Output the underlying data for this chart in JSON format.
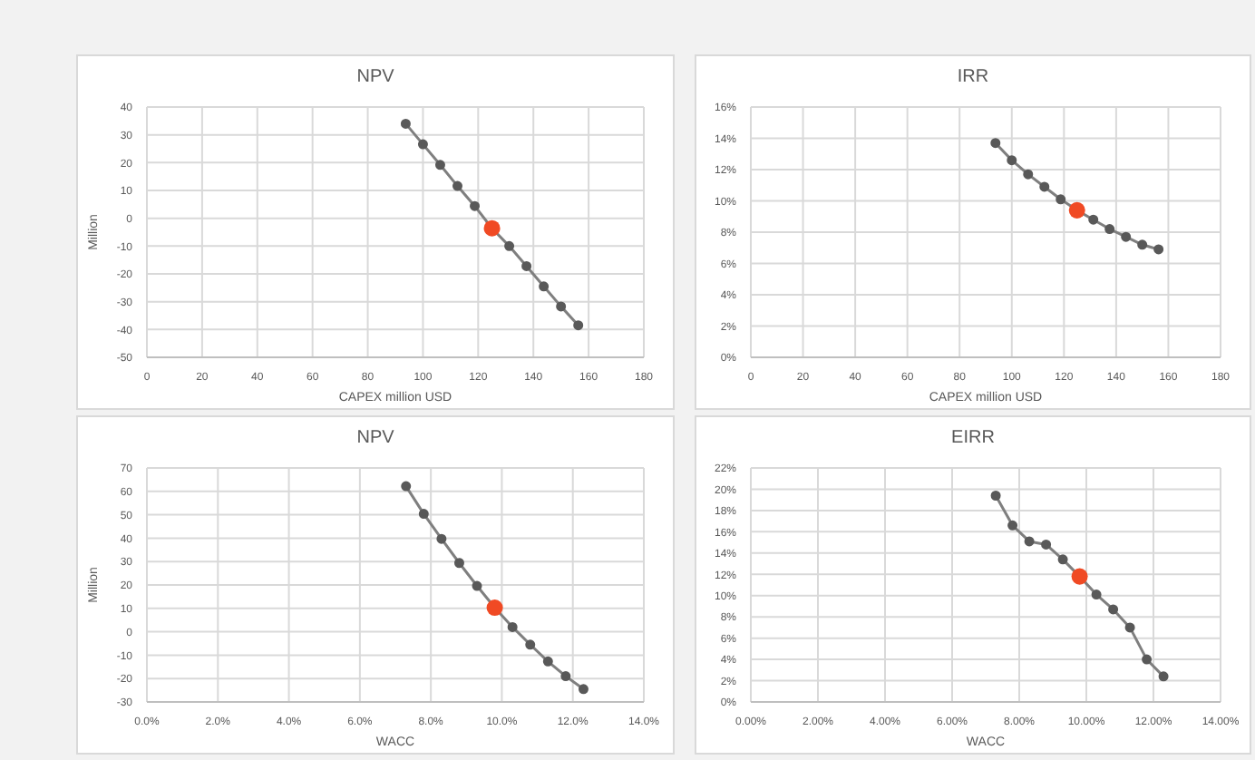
{
  "chart_data": [
    {
      "type": "line",
      "title": "NPV",
      "xlabel": "CAPEX million USD",
      "ylabel": "Million",
      "xlim": [
        0,
        180
      ],
      "xticks": [
        0,
        20,
        40,
        60,
        80,
        100,
        120,
        140,
        160,
        180
      ],
      "ylim": [
        -50,
        40
      ],
      "yticks": [
        -50,
        -40,
        -30,
        -20,
        -10,
        0,
        10,
        20,
        30,
        40
      ],
      "grid": true,
      "marker": "circle",
      "series": [
        {
          "type": "line",
          "color": "#7f7f7f",
          "x": [
            93.75,
            100,
            106.25,
            112.5,
            118.75,
            125,
            131.25,
            137.5,
            143.75,
            150,
            156.25
          ],
          "values": [
            34,
            26.6,
            19.2,
            11.6,
            4.4,
            -3.6,
            -10,
            -17.2,
            -24.5,
            -31.7,
            -38.5
          ]
        },
        {
          "type": "scatter",
          "color": "#f04a24",
          "x": [
            125
          ],
          "values": [
            -3.6
          ]
        }
      ]
    },
    {
      "type": "line",
      "title": "IRR",
      "xlabel": "CAPEX million USD",
      "xlim": [
        0,
        180
      ],
      "xticks": [
        0,
        20,
        40,
        60,
        80,
        100,
        120,
        140,
        160,
        180
      ],
      "ylim": [
        0,
        16
      ],
      "yticks": [
        {
          "value": 0,
          "label": "0%"
        },
        {
          "value": 2,
          "label": "2%"
        },
        {
          "value": 4,
          "label": "4%"
        },
        {
          "value": 6,
          "label": "6%"
        },
        {
          "value": 8,
          "label": "8%"
        },
        {
          "value": 10,
          "label": "10%"
        },
        {
          "value": 12,
          "label": "12%"
        },
        {
          "value": 14,
          "label": "14%"
        },
        {
          "value": 16,
          "label": "16%"
        }
      ],
      "grid": true,
      "marker": "circle",
      "series": [
        {
          "type": "line",
          "color": "#7f7f7f",
          "x": [
            93.75,
            100,
            106.25,
            112.5,
            118.75,
            125,
            131.25,
            137.5,
            143.75,
            150,
            156.25
          ],
          "values": [
            13.7,
            12.6,
            11.7,
            10.9,
            10.1,
            9.4,
            8.8,
            8.2,
            7.7,
            7.2,
            6.9
          ]
        },
        {
          "type": "scatter",
          "color": "#f04a24",
          "x": [
            125
          ],
          "values": [
            9.4
          ]
        }
      ]
    },
    {
      "type": "line",
      "title": "NPV",
      "xlabel": "WACC",
      "ylabel": "Million",
      "xlim": [
        0,
        14
      ],
      "xticks": [
        {
          "value": 0,
          "label": "0.0%"
        },
        {
          "value": 2,
          "label": "2.0%"
        },
        {
          "value": 4,
          "label": "4.0%"
        },
        {
          "value": 6,
          "label": "6.0%"
        },
        {
          "value": 8,
          "label": "8.0%"
        },
        {
          "value": 10,
          "label": "10.0%"
        },
        {
          "value": 12,
          "label": "12.0%"
        },
        {
          "value": 14,
          "label": "14.0%"
        }
      ],
      "ylim": [
        -30,
        70
      ],
      "yticks": [
        -30,
        -20,
        -10,
        0,
        10,
        20,
        30,
        40,
        50,
        60,
        70
      ],
      "grid": true,
      "marker": "circle",
      "series": [
        {
          "type": "line",
          "color": "#7f7f7f",
          "x": [
            7.3,
            7.8,
            8.3,
            8.8,
            9.3,
            9.8,
            10.3,
            10.8,
            11.3,
            11.8,
            12.3
          ],
          "values": [
            62.2,
            50.4,
            39.7,
            29.4,
            19.6,
            10.3,
            2,
            -5.5,
            -12.7,
            -19,
            -24.5
          ]
        },
        {
          "type": "scatter",
          "color": "#f04a24",
          "x": [
            9.8
          ],
          "values": [
            10.3
          ]
        }
      ]
    },
    {
      "type": "line",
      "title": "EIRR",
      "xlabel": "WACC",
      "xlim": [
        0,
        14
      ],
      "xticks": [
        {
          "value": 0,
          "label": "0.00%"
        },
        {
          "value": 2,
          "label": "2.00%"
        },
        {
          "value": 4,
          "label": "4.00%"
        },
        {
          "value": 6,
          "label": "6.00%"
        },
        {
          "value": 8,
          "label": "8.00%"
        },
        {
          "value": 10,
          "label": "10.00%"
        },
        {
          "value": 12,
          "label": "12.00%"
        },
        {
          "value": 14,
          "label": "14.00%"
        }
      ],
      "ylim": [
        0,
        22
      ],
      "yticks": [
        {
          "value": 0,
          "label": "0%"
        },
        {
          "value": 2,
          "label": "2%"
        },
        {
          "value": 4,
          "label": "4%"
        },
        {
          "value": 6,
          "label": "6%"
        },
        {
          "value": 8,
          "label": "8%"
        },
        {
          "value": 10,
          "label": "10%"
        },
        {
          "value": 12,
          "label": "12%"
        },
        {
          "value": 14,
          "label": "14%"
        },
        {
          "value": 16,
          "label": "16%"
        },
        {
          "value": 18,
          "label": "18%"
        },
        {
          "value": 20,
          "label": "20%"
        },
        {
          "value": 22,
          "label": "22%"
        }
      ],
      "grid": true,
      "marker": "circle",
      "series": [
        {
          "type": "line",
          "color": "#7f7f7f",
          "x": [
            7.3,
            7.8,
            8.3,
            8.8,
            9.3,
            9.8,
            10.3,
            10.8,
            11.3,
            11.8,
            12.3
          ],
          "values": [
            19.4,
            16.6,
            15.1,
            14.8,
            13.4,
            11.8,
            10.1,
            8.7,
            7,
            4,
            2.4
          ]
        },
        {
          "type": "scatter",
          "color": "#f04a24",
          "x": [
            9.8
          ],
          "values": [
            11.8
          ]
        }
      ]
    }
  ]
}
